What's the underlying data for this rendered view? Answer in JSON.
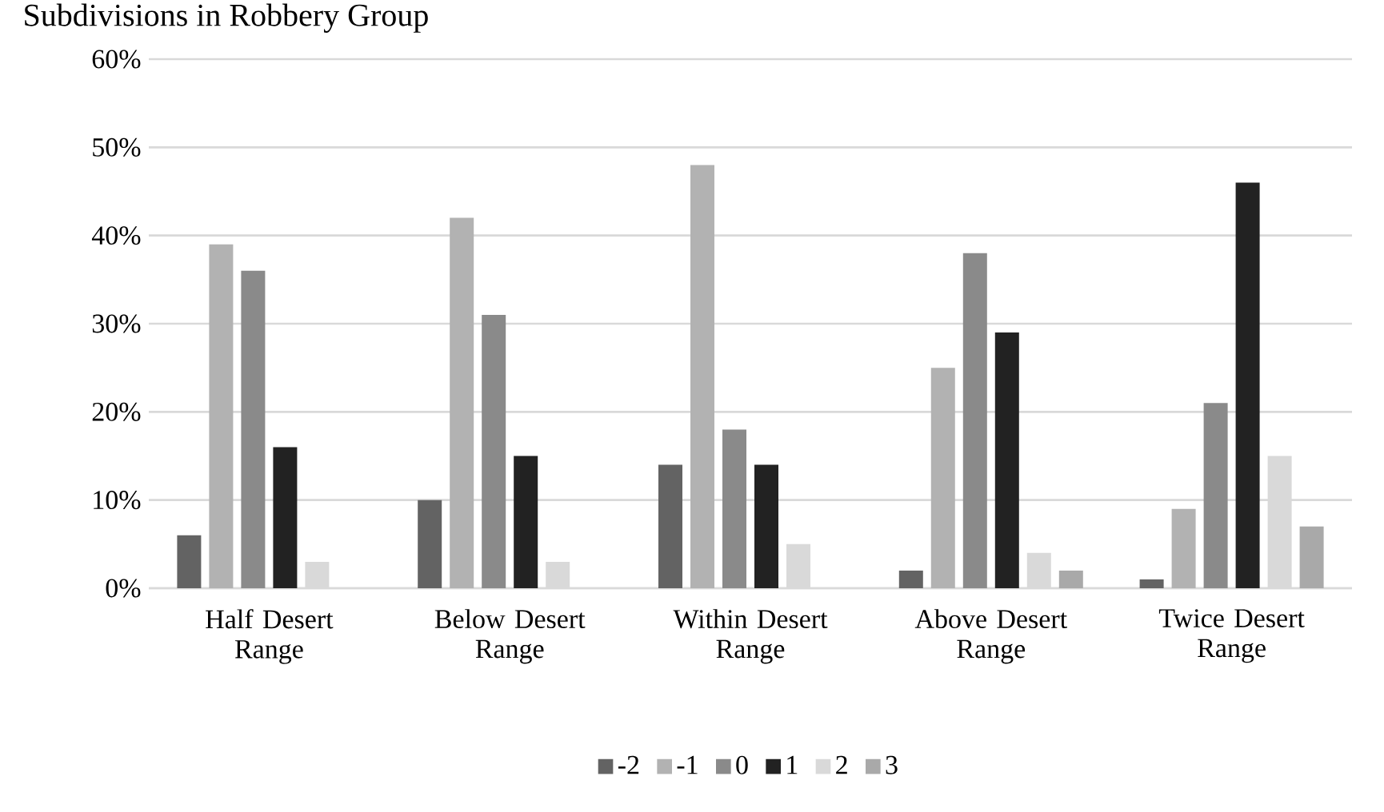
{
  "chart_data": {
    "type": "bar",
    "title": "Subdivisions in Robbery Group",
    "categories": [
      "Half Desert Range",
      "Below Desert Range",
      "Within Desert Range",
      "Above Desert Range",
      "Twice Desert Range"
    ],
    "series": [
      {
        "name": "-2",
        "color": "#636363",
        "values": [
          6,
          10,
          14,
          2,
          1
        ]
      },
      {
        "name": "-1",
        "color": "#b2b2b2",
        "values": [
          39,
          42,
          48,
          25,
          9
        ]
      },
      {
        "name": "0",
        "color": "#8a8a8a",
        "values": [
          36,
          31,
          18,
          38,
          21
        ]
      },
      {
        "name": "1",
        "color": "#222222",
        "values": [
          16,
          15,
          14,
          29,
          46
        ]
      },
      {
        "name": "2",
        "color": "#d9d9d9",
        "values": [
          3,
          3,
          5,
          4,
          15
        ]
      },
      {
        "name": "3",
        "color": "#a9a9a9",
        "values": [
          0,
          0,
          0,
          2,
          7
        ]
      }
    ],
    "ylim": [
      0,
      60
    ],
    "yticks": [
      {
        "value": 0,
        "label": "0%"
      },
      {
        "value": 10,
        "label": "10%"
      },
      {
        "value": 20,
        "label": "20%"
      },
      {
        "value": 30,
        "label": "30%"
      },
      {
        "value": 40,
        "label": "40%"
      },
      {
        "value": 50,
        "label": "50%"
      },
      {
        "value": 60,
        "label": "60%"
      }
    ],
    "grid": "y",
    "legend": "bottom"
  }
}
